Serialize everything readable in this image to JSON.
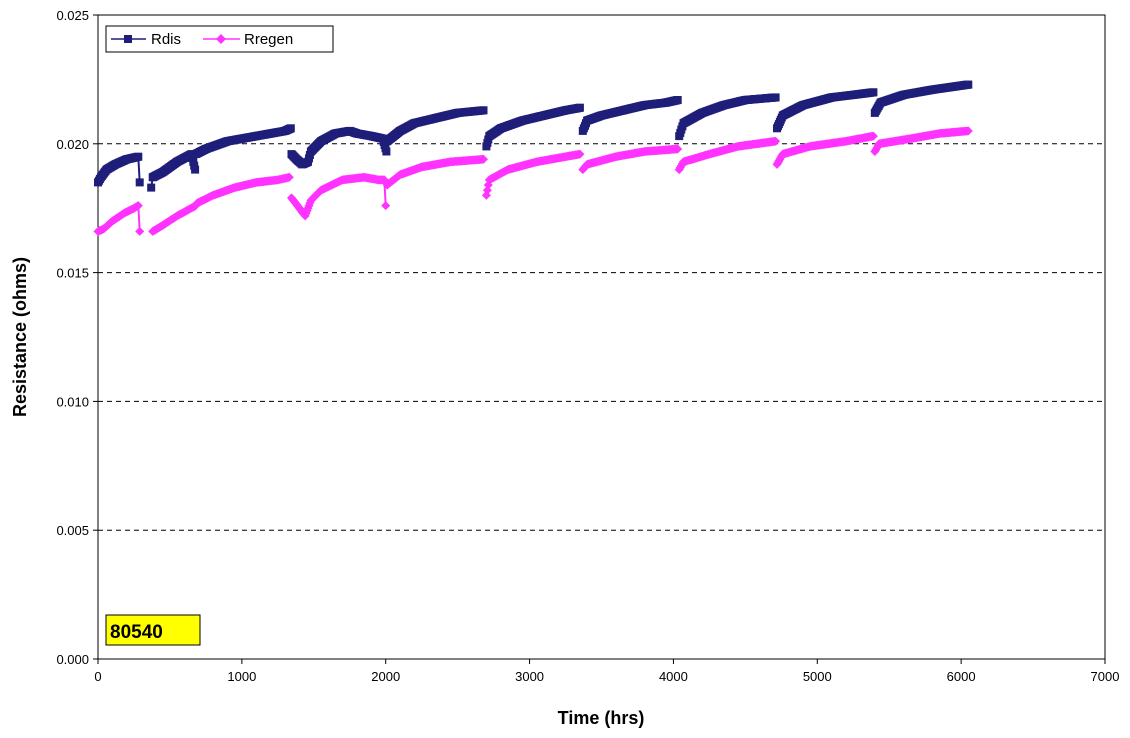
{
  "chart_data": {
    "type": "scatter",
    "title": "",
    "xlabel": "Time (hrs)",
    "ylabel": "Resistance (ohms)",
    "xlim": [
      0,
      7000
    ],
    "ylim": [
      0,
      0.025
    ],
    "x_ticks": [
      0,
      1000,
      2000,
      3000,
      4000,
      5000,
      6000,
      7000
    ],
    "x_tick_labels": [
      "0",
      "1000",
      "2000",
      "3000",
      "4000",
      "5000",
      "6000",
      "7000"
    ],
    "y_ticks": [
      0,
      0.005,
      0.01,
      0.015,
      0.02,
      0.025
    ],
    "y_tick_labels": [
      "0.000",
      "0.005",
      "0.010",
      "0.015",
      "0.020",
      "0.025"
    ],
    "grid": {
      "horizontal": true,
      "vertical": false,
      "style": "dashed"
    },
    "legend": {
      "position": "top-left"
    },
    "annotation": {
      "text": "80540",
      "position": "bottom-left",
      "background": "#ffff00"
    },
    "series": [
      {
        "name": "Rdis",
        "color": "#1f1f7a",
        "marker": "square",
        "segments": [
          [
            [
              0,
              0.0185
            ],
            [
              20,
              0.0187
            ],
            [
              60,
              0.019
            ],
            [
              120,
              0.0192
            ],
            [
              200,
              0.0194
            ],
            [
              280,
              0.0195
            ],
            [
              290,
              0.0185
            ]
          ],
          [
            [
              370,
              0.0183
            ],
            [
              380,
              0.0187
            ],
            [
              450,
              0.0189
            ],
            [
              550,
              0.0193
            ],
            [
              650,
              0.0196
            ],
            [
              675,
              0.019
            ]
          ],
          [
            [
              680,
              0.0196
            ],
            [
              750,
              0.0198
            ],
            [
              900,
              0.0201
            ],
            [
              1100,
              0.0203
            ],
            [
              1300,
              0.0205
            ],
            [
              1340,
              0.0206
            ]
          ],
          [
            [
              1345,
              0.0196
            ],
            [
              1380,
              0.0194
            ],
            [
              1420,
              0.0192
            ],
            [
              1460,
              0.0193
            ],
            [
              1480,
              0.0197
            ],
            [
              1550,
              0.0201
            ],
            [
              1650,
              0.0204
            ],
            [
              1750,
              0.0205
            ],
            [
              1800,
              0.0204
            ],
            [
              1900,
              0.0203
            ],
            [
              1980,
              0.0202
            ],
            [
              2005,
              0.0197
            ]
          ],
          [
            [
              2010,
              0.0201
            ],
            [
              2100,
              0.0205
            ],
            [
              2200,
              0.0208
            ],
            [
              2350,
              0.021
            ],
            [
              2500,
              0.0212
            ],
            [
              2680,
              0.0213
            ]
          ],
          [
            [
              2700,
              0.0199
            ],
            [
              2720,
              0.0203
            ],
            [
              2800,
              0.0206
            ],
            [
              2950,
              0.0209
            ],
            [
              3100,
              0.0211
            ],
            [
              3250,
              0.0213
            ],
            [
              3350,
              0.0214
            ]
          ],
          [
            [
              3370,
              0.0205
            ],
            [
              3400,
              0.0209
            ],
            [
              3500,
              0.0211
            ],
            [
              3650,
              0.0213
            ],
            [
              3800,
              0.0215
            ],
            [
              3950,
              0.0216
            ],
            [
              4030,
              0.0217
            ]
          ],
          [
            [
              4040,
              0.0203
            ],
            [
              4070,
              0.0208
            ],
            [
              4200,
              0.0212
            ],
            [
              4350,
              0.0215
            ],
            [
              4500,
              0.0217
            ],
            [
              4710,
              0.0218
            ]
          ],
          [
            [
              4720,
              0.0206
            ],
            [
              4760,
              0.0211
            ],
            [
              4900,
              0.0215
            ],
            [
              5100,
              0.0218
            ],
            [
              5250,
              0.0219
            ],
            [
              5390,
              0.022
            ]
          ],
          [
            [
              5400,
              0.0212
            ],
            [
              5440,
              0.0216
            ],
            [
              5600,
              0.0219
            ],
            [
              5800,
              0.0221
            ],
            [
              6050,
              0.0223
            ]
          ]
        ]
      },
      {
        "name": "Rregen",
        "color": "#ff33ff",
        "marker": "diamond",
        "segments": [
          [
            [
              0,
              0.0166
            ],
            [
              40,
              0.0167
            ],
            [
              100,
              0.017
            ],
            [
              180,
              0.0173
            ],
            [
              250,
              0.0175
            ],
            [
              280,
              0.0176
            ],
            [
              290,
              0.0166
            ]
          ],
          [
            [
              380,
              0.0166
            ],
            [
              440,
              0.0168
            ],
            [
              550,
              0.0172
            ],
            [
              680,
              0.0176
            ]
          ],
          [
            [
              690,
              0.0177
            ],
            [
              800,
              0.018
            ],
            [
              950,
              0.0183
            ],
            [
              1100,
              0.0185
            ],
            [
              1250,
              0.0186
            ],
            [
              1330,
              0.0187
            ]
          ],
          [
            [
              1345,
              0.0179
            ],
            [
              1400,
              0.0175
            ],
            [
              1440,
              0.0172
            ],
            [
              1480,
              0.0178
            ],
            [
              1550,
              0.0182
            ],
            [
              1700,
              0.0186
            ],
            [
              1850,
              0.0187
            ],
            [
              1950,
              0.0186
            ],
            [
              1990,
              0.0186
            ],
            [
              2000,
              0.0176
            ]
          ],
          [
            [
              2010,
              0.0184
            ],
            [
              2100,
              0.0188
            ],
            [
              2250,
              0.0191
            ],
            [
              2450,
              0.0193
            ],
            [
              2680,
              0.0194
            ]
          ],
          [
            [
              2700,
              0.018
            ],
            [
              2720,
              0.0186
            ],
            [
              2850,
              0.019
            ],
            [
              3050,
              0.0193
            ],
            [
              3250,
              0.0195
            ],
            [
              3350,
              0.0196
            ]
          ],
          [
            [
              3370,
              0.019
            ],
            [
              3400,
              0.0192
            ],
            [
              3600,
              0.0195
            ],
            [
              3800,
              0.0197
            ],
            [
              4030,
              0.0198
            ]
          ],
          [
            [
              4040,
              0.019
            ],
            [
              4070,
              0.0193
            ],
            [
              4250,
              0.0196
            ],
            [
              4450,
              0.0199
            ],
            [
              4710,
              0.0201
            ]
          ],
          [
            [
              4720,
              0.0192
            ],
            [
              4760,
              0.0196
            ],
            [
              4950,
              0.0199
            ],
            [
              5200,
              0.0201
            ],
            [
              5390,
              0.0203
            ]
          ],
          [
            [
              5400,
              0.0197
            ],
            [
              5430,
              0.02
            ],
            [
              5650,
              0.0202
            ],
            [
              5850,
              0.0204
            ],
            [
              6050,
              0.0205
            ]
          ]
        ]
      }
    ]
  }
}
